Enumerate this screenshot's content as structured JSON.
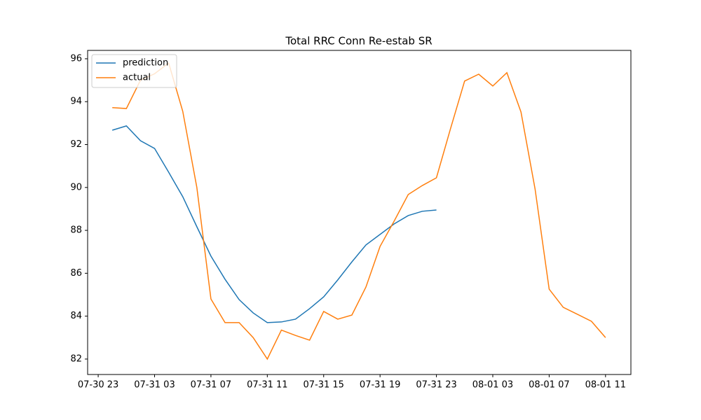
{
  "chart_data": {
    "type": "line",
    "title": "Total RRC Conn Re-estab SR",
    "x": [
      "07-31 00",
      "07-31 01",
      "07-31 02",
      "07-31 03",
      "07-31 04",
      "07-31 05",
      "07-31 06",
      "07-31 07",
      "07-31 08",
      "07-31 09",
      "07-31 10",
      "07-31 11",
      "07-31 12",
      "07-31 13",
      "07-31 14",
      "07-31 15",
      "07-31 16",
      "07-31 17",
      "07-31 18",
      "07-31 19",
      "07-31 20",
      "07-31 21",
      "07-31 22",
      "07-31 23",
      "08-01 00",
      "08-01 01",
      "08-01 02",
      "08-01 03",
      "08-01 04",
      "08-01 05",
      "08-01 06",
      "08-01 07",
      "08-01 08",
      "08-01 09",
      "08-01 10",
      "08-01 11"
    ],
    "series": [
      {
        "name": "prediction",
        "color": "#1f77b4",
        "values": [
          92.67,
          92.87,
          92.18,
          91.82,
          90.71,
          89.57,
          88.17,
          86.8,
          85.72,
          84.77,
          84.15,
          83.7,
          83.73,
          83.86,
          84.35,
          84.9,
          85.69,
          86.53,
          87.32,
          87.81,
          88.3,
          88.69,
          88.89,
          88.95,
          null,
          null,
          null,
          null,
          null,
          null,
          null,
          null,
          null,
          null,
          null,
          null
        ]
      },
      {
        "name": "actual",
        "color": "#ff7f0e",
        "values": [
          93.72,
          93.68,
          95.0,
          95.3,
          95.8,
          93.55,
          90.0,
          84.8,
          83.7,
          83.7,
          83.0,
          82.0,
          83.35,
          83.1,
          82.88,
          84.22,
          83.86,
          84.05,
          85.36,
          87.25,
          88.43,
          89.67,
          90.09,
          90.45,
          92.74,
          94.96,
          95.28,
          94.73,
          95.35,
          93.52,
          89.93,
          85.26,
          84.41,
          84.09,
          83.76,
          83.0
        ]
      }
    ],
    "xlim": [
      "07-30 22:15",
      "08-01 12:48"
    ],
    "xticks": [
      "07-30 23",
      "07-31 03",
      "07-31 07",
      "07-31 11",
      "07-31 15",
      "07-31 19",
      "07-31 23",
      "08-01 03",
      "08-01 07",
      "08-01 11"
    ],
    "ylim": [
      81.28,
      96.39
    ],
    "yticks": [
      82,
      84,
      86,
      88,
      90,
      92,
      94,
      96
    ],
    "legend": "upper left"
  }
}
